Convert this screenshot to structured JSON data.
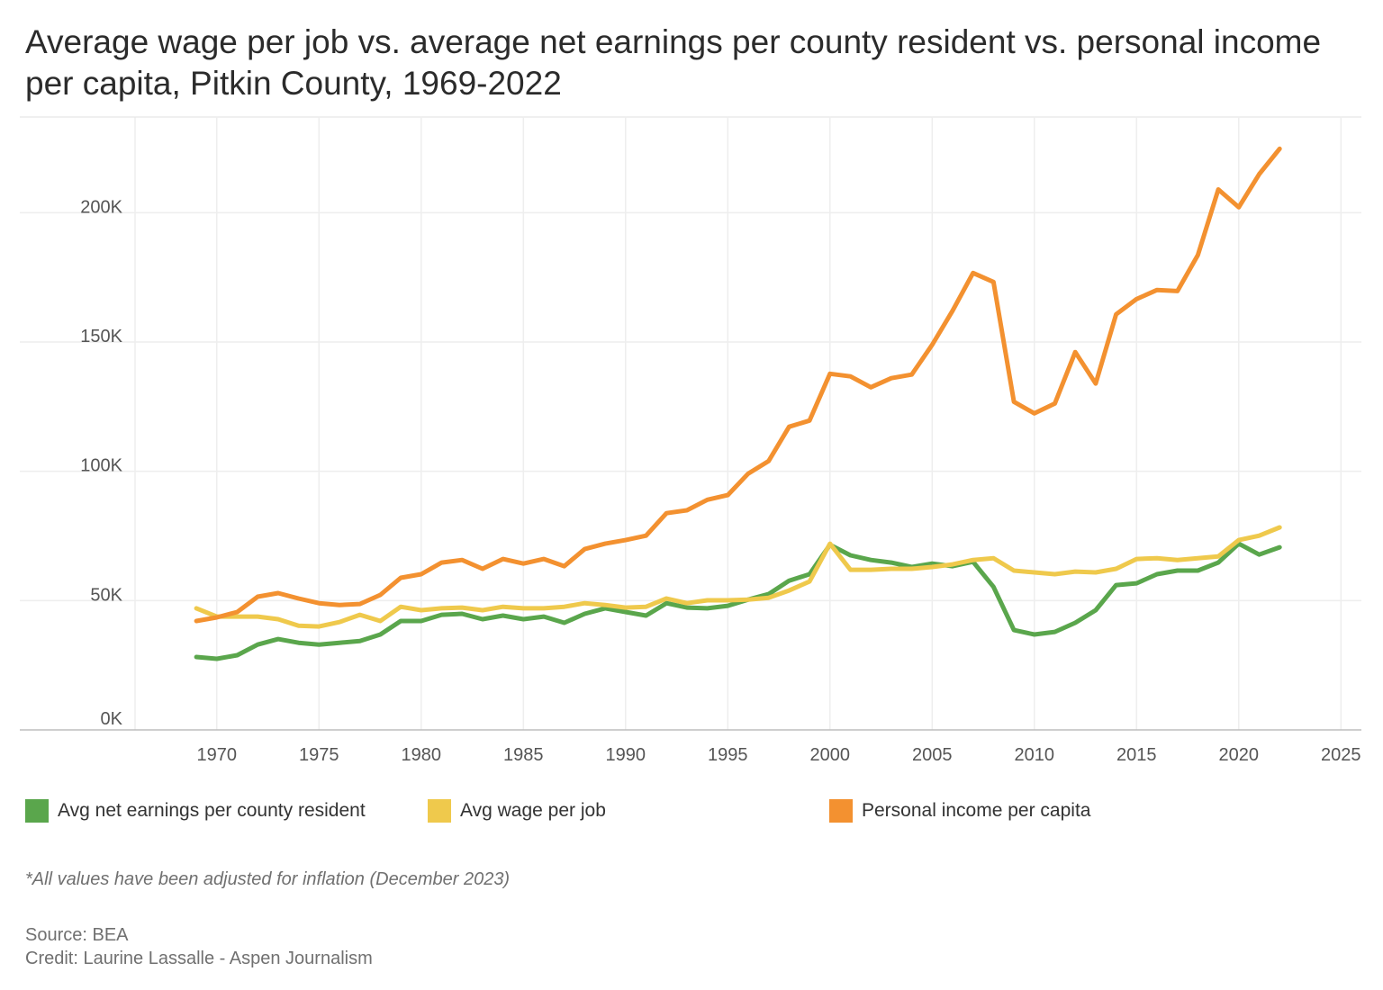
{
  "chart_data": {
    "type": "line",
    "title": "Average wage per job vs. average net earnings per county resident vs. personal income per capita, Pitkin County, 1969-2022",
    "xlabel": "",
    "ylabel": "",
    "xlim": [
      1966,
      2026
    ],
    "ylim": [
      0,
      237000
    ],
    "grid": true,
    "legend_position": "bottom",
    "x_ticks": [
      1970,
      1975,
      1980,
      1985,
      1990,
      1995,
      2000,
      2005,
      2010,
      2015,
      2020,
      2025
    ],
    "x_tick_labels": [
      "1970",
      "1975",
      "1980",
      "1985",
      "1990",
      "1995",
      "2000",
      "2005",
      "2010",
      "2015",
      "2020",
      "2025"
    ],
    "y_ticks": [
      0,
      50000,
      100000,
      150000,
      200000
    ],
    "y_tick_labels": [
      "0K",
      "50K",
      "100K",
      "150K",
      "200K"
    ],
    "x": [
      1969,
      1970,
      1971,
      1972,
      1973,
      1974,
      1975,
      1976,
      1977,
      1978,
      1979,
      1980,
      1981,
      1982,
      1983,
      1984,
      1985,
      1986,
      1987,
      1988,
      1989,
      1990,
      1991,
      1992,
      1993,
      1994,
      1995,
      1996,
      1997,
      1998,
      1999,
      2000,
      2001,
      2002,
      2003,
      2004,
      2005,
      2006,
      2007,
      2008,
      2009,
      2010,
      2011,
      2012,
      2013,
      2014,
      2015,
      2016,
      2017,
      2018,
      2019,
      2020,
      2021,
      2022
    ],
    "series": [
      {
        "name": "Avg net earnings per county resident",
        "color": "#5aa64c",
        "values": [
          28200,
          27500,
          28900,
          33000,
          35100,
          33700,
          33000,
          33700,
          34400,
          36900,
          42100,
          42100,
          44500,
          44900,
          42800,
          44200,
          42800,
          43800,
          41400,
          44900,
          47000,
          45600,
          44200,
          49000,
          47300,
          47000,
          48000,
          50400,
          52500,
          57700,
          60200,
          71600,
          67500,
          65700,
          64700,
          63000,
          64300,
          63300,
          65000,
          55300,
          38600,
          36900,
          37900,
          41400,
          46300,
          56000,
          56700,
          60200,
          61600,
          61600,
          64700,
          72000,
          67800,
          70600
        ]
      },
      {
        "name": "Avg wage per job",
        "color": "#efc94c",
        "values": [
          47000,
          43800,
          43800,
          43800,
          42800,
          40300,
          40000,
          41700,
          44500,
          42100,
          47600,
          46300,
          47000,
          47300,
          46300,
          47600,
          47000,
          47000,
          47600,
          49000,
          48300,
          47300,
          47600,
          50800,
          49000,
          50100,
          50100,
          50400,
          51100,
          53900,
          57400,
          72000,
          61900,
          61900,
          62300,
          62300,
          63000,
          64000,
          65700,
          66400,
          61600,
          60900,
          60200,
          61200,
          60900,
          62300,
          66100,
          66400,
          65700,
          66400,
          67100,
          73400,
          75100,
          78300
        ]
      },
      {
        "name": "Personal income per capita",
        "color": "#f39130",
        "values": [
          42100,
          43500,
          45600,
          51500,
          52900,
          50800,
          49000,
          48300,
          48700,
          52200,
          58800,
          60200,
          64700,
          65700,
          62300,
          66100,
          64300,
          66100,
          63300,
          69900,
          72000,
          73400,
          75100,
          83800,
          84900,
          89000,
          90800,
          99100,
          104000,
          117200,
          119600,
          137700,
          136700,
          132500,
          136000,
          137400,
          148900,
          162100,
          176700,
          173200,
          126900,
          122400,
          126200,
          146100,
          133900,
          160700,
          166600,
          170100,
          169700,
          183600,
          209000,
          202100,
          214900,
          224700
        ]
      }
    ]
  },
  "footnote": "*All values have been adjusted for inflation (December 2023)",
  "source": "Source: BEA",
  "credit": "Credit: Laurine Lassalle - Aspen Journalism"
}
